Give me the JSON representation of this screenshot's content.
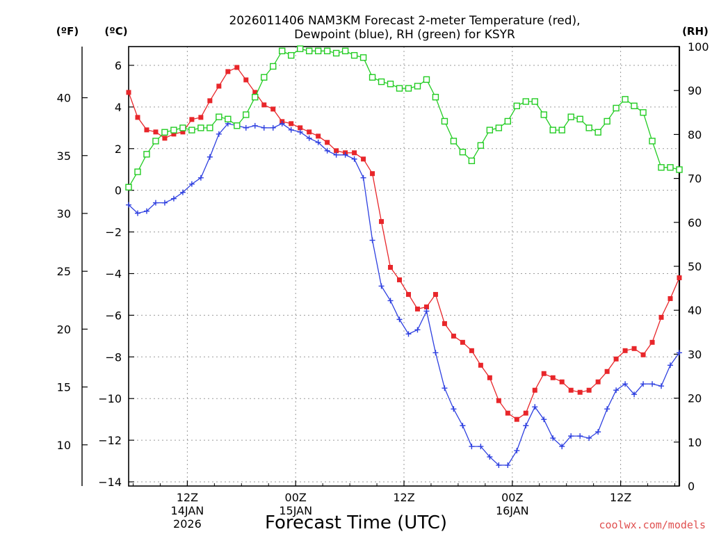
{
  "chart_data": {
    "type": "line",
    "title_line1": "2026011406 NAM3KM Forecast 2-meter Temperature (red),",
    "title_line2": "Dewpoint (blue), RH (green) for KSYR",
    "xlabel": "Forecast Time (UTC)",
    "watermark": "coolwx.com/models",
    "axis_units": {
      "fahrenheit": "(ºF)",
      "celsius": "(ºC)",
      "rh": "(RH)"
    },
    "x_hours_range": [
      -0.5,
      60.5
    ],
    "celsius_range": [
      -14.2,
      6.9
    ],
    "rh_range": [
      0,
      100
    ],
    "fahrenheit_ticks": [
      "10",
      "15",
      "20",
      "25",
      "30",
      "35",
      "40"
    ],
    "celsius_ticks": [
      "-14",
      "-12",
      "-10",
      "-8",
      "-6",
      "-4",
      "-2",
      "0",
      "2",
      "4",
      "6"
    ],
    "rh_ticks": [
      "0",
      "10",
      "20",
      "30",
      "40",
      "50",
      "60",
      "70",
      "80",
      "90",
      "100"
    ],
    "x_ticks": [
      {
        "hour": 6,
        "line1": "12Z",
        "line2": "14JAN",
        "line3": "2026"
      },
      {
        "hour": 18,
        "line1": "00Z",
        "line2": "15JAN",
        "line3": ""
      },
      {
        "hour": 30,
        "line1": "12Z",
        "line2": "",
        "line3": ""
      },
      {
        "hour": 42,
        "line1": "00Z",
        "line2": "16JAN",
        "line3": ""
      },
      {
        "hour": 54,
        "line1": "12Z",
        "line2": "",
        "line3": ""
      }
    ],
    "x_hours": [
      -0.5,
      0.5,
      1.5,
      2.5,
      3.5,
      4.5,
      5.5,
      6.5,
      7.5,
      8.5,
      9.5,
      10.5,
      11.5,
      12.5,
      13.5,
      14.5,
      15.5,
      16.5,
      17.5,
      18.5,
      19.5,
      20.5,
      21.5,
      22.5,
      23.5,
      24.5,
      25.5,
      26.5,
      27.5,
      28.5,
      29.5,
      30.5,
      31.5,
      32.5,
      33.5,
      34.5,
      35.5,
      36.5,
      37.5,
      38.5,
      39.5,
      40.5,
      41.5,
      42.5,
      43.5,
      44.5,
      45.5,
      46.5,
      47.5,
      48.5,
      49.5,
      50.5,
      51.5,
      52.5,
      53.5,
      54.5,
      55.5,
      56.5,
      57.5,
      58.5,
      59.5,
      60.5
    ],
    "series": [
      {
        "name": "2-meter Temperature",
        "axis": "celsius",
        "color": "#e8262a",
        "marker": "filled-square",
        "values": [
          4.7,
          3.5,
          2.9,
          2.8,
          2.5,
          2.7,
          2.8,
          3.4,
          3.5,
          4.3,
          5.0,
          5.7,
          5.9,
          5.3,
          4.7,
          4.1,
          3.9,
          3.3,
          3.2,
          3.0,
          2.8,
          2.6,
          2.3,
          1.9,
          1.8,
          1.8,
          1.5,
          0.8,
          -1.5,
          -3.7,
          -4.3,
          -5.0,
          -5.7,
          -5.6,
          -5.0,
          -6.4,
          -7.0,
          -7.3,
          -7.7,
          -8.4,
          -9.0,
          -10.1,
          -10.7,
          -11.0,
          -10.7,
          -9.6,
          -8.8,
          -9.0,
          -9.2,
          -9.6,
          -9.7,
          -9.6,
          -9.2,
          -8.7,
          -8.1,
          -7.7,
          -7.6,
          -7.9,
          -7.3,
          -6.1,
          -5.2,
          -4.2
        ]
      },
      {
        "name": "Dewpoint",
        "axis": "celsius",
        "color": "#2d3fe0",
        "marker": "plus",
        "values": [
          -0.7,
          -1.1,
          -1.0,
          -0.6,
          -0.6,
          -0.4,
          -0.1,
          0.3,
          0.6,
          1.6,
          2.7,
          3.2,
          3.1,
          3.0,
          3.1,
          3.0,
          3.0,
          3.2,
          2.9,
          2.8,
          2.5,
          2.3,
          1.9,
          1.7,
          1.7,
          1.5,
          0.6,
          -2.4,
          -4.6,
          -5.3,
          -6.2,
          -6.9,
          -6.7,
          -5.8,
          -7.8,
          -9.5,
          -10.5,
          -11.3,
          -12.3,
          -12.3,
          -12.8,
          -13.2,
          -13.2,
          -12.5,
          -11.3,
          -10.4,
          -11.0,
          -11.9,
          -12.3,
          -11.8,
          -11.8,
          -11.9,
          -11.6,
          -10.5,
          -9.6,
          -9.3,
          -9.8,
          -9.3,
          -9.3,
          -9.4,
          -8.4,
          -7.8
        ]
      },
      {
        "name": "RH",
        "axis": "rh",
        "color": "#22cc22",
        "marker": "open-square",
        "values": [
          68,
          71.5,
          75.5,
          78.5,
          80.5,
          81,
          81.5,
          81,
          81.5,
          81.5,
          84,
          83.5,
          82,
          84.5,
          88.5,
          93,
          95.5,
          99,
          98,
          99.5,
          99,
          99,
          99,
          98.5,
          99,
          98,
          97.5,
          93,
          92,
          91.5,
          90.5,
          90.5,
          91,
          92.5,
          88.5,
          83,
          78.5,
          76,
          74,
          77.5,
          81,
          81.5,
          83,
          86.5,
          87.5,
          87.5,
          84.5,
          81,
          81,
          84,
          83.5,
          81.5,
          80.5,
          83,
          86,
          88,
          86.5,
          85,
          78.5,
          72.5,
          72.5,
          72
        ]
      }
    ]
  }
}
